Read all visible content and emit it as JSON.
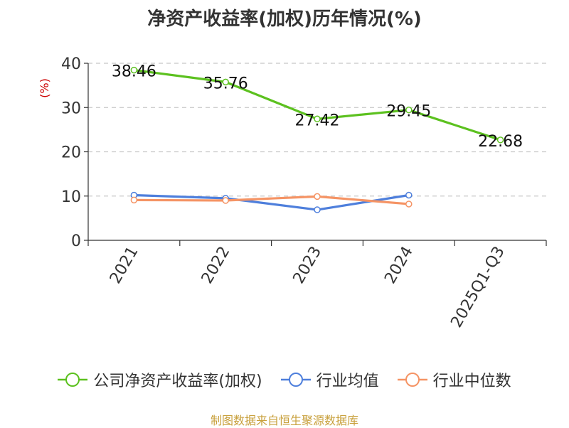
{
  "title": "净资产收益率(加权)历年情况(%)",
  "source": "制图数据来自恒生聚源数据库",
  "chart_data": {
    "type": "line",
    "title": "净资产收益率(加权)历年情况(%)",
    "ylabel": "(%)",
    "ylim": [
      0,
      40
    ],
    "yticks": [
      0,
      10,
      20,
      30,
      40
    ],
    "grid": true,
    "legend_position": "bottom",
    "categories": [
      "2021",
      "2022",
      "2023",
      "2024",
      "2025Q1-Q3"
    ],
    "series": [
      {
        "name": "公司净资产收益率(加权)",
        "color": "#5cc11f",
        "values": [
          38.46,
          35.76,
          27.42,
          29.45,
          22.68
        ],
        "labels": [
          "38.46",
          "35.76",
          "27.42",
          "29.45",
          "22.68"
        ],
        "show_labels": true
      },
      {
        "name": "行业均值",
        "color": "#4e7fdc",
        "values": [
          10.2,
          9.5,
          6.9,
          10.2,
          null
        ],
        "show_labels": false
      },
      {
        "name": "行业中位数",
        "color": "#f59465",
        "values": [
          9.1,
          9.0,
          9.9,
          8.2,
          null
        ],
        "show_labels": false
      }
    ]
  }
}
